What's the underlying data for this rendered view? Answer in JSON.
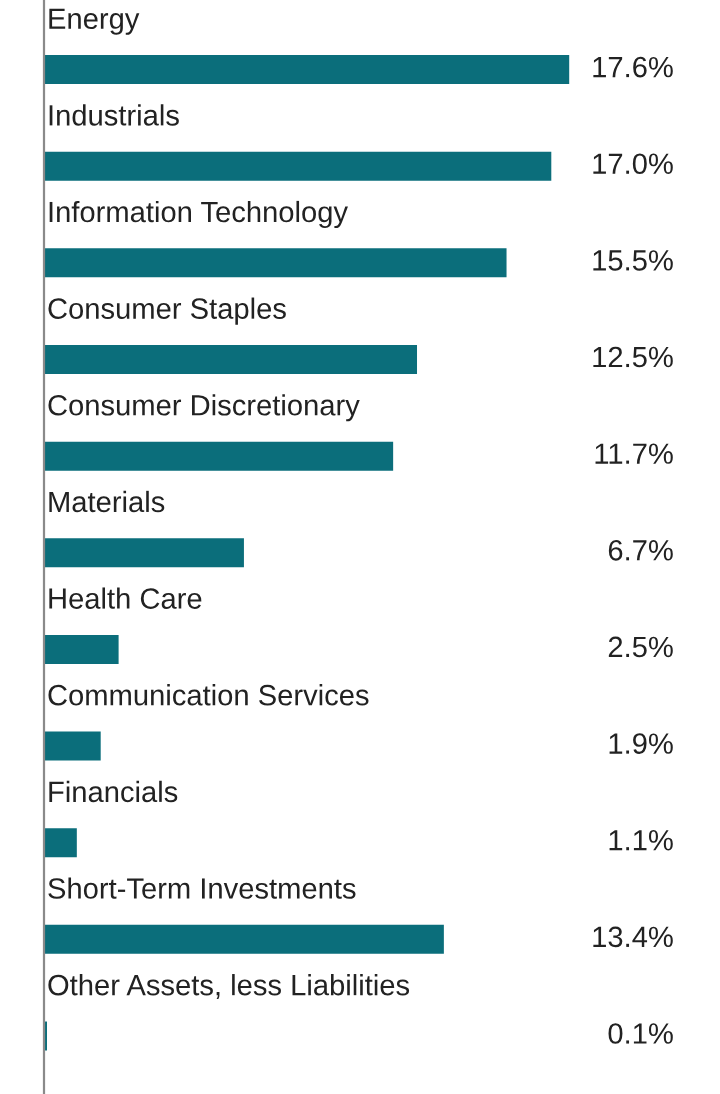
{
  "chart_data": {
    "type": "bar",
    "orientation": "horizontal",
    "categories": [
      "Energy",
      "Industrials",
      "Information Technology",
      "Consumer Staples",
      "Consumer Discretionary",
      "Materials",
      "Health Care",
      "Communication Services",
      "Financials",
      "Short-Term Investments",
      "Other Assets, less Liabilities"
    ],
    "values": [
      17.6,
      17.0,
      15.5,
      12.5,
      11.7,
      6.7,
      2.5,
      1.9,
      1.1,
      13.4,
      0.1
    ],
    "value_labels": [
      "17.6%",
      "17.0%",
      "15.5%",
      "12.5%",
      "11.7%",
      "6.7%",
      "2.5%",
      "1.9%",
      "1.1%",
      "13.4%",
      "0.1%"
    ],
    "color": "#0b6e7b"
  }
}
